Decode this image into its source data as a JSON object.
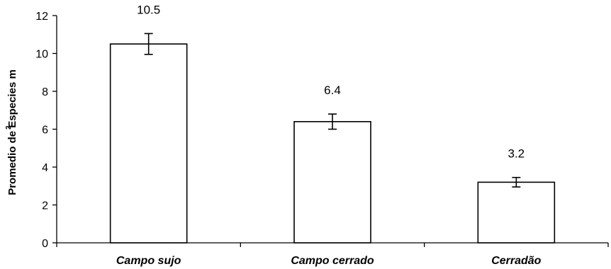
{
  "chart_data": {
    "type": "bar",
    "categories": [
      "Campo sujo",
      "Campo cerrado",
      "Cerradão"
    ],
    "values": [
      10.5,
      6.4,
      3.2
    ],
    "errors": [
      0.55,
      0.4,
      0.25
    ],
    "data_labels": [
      "10.5",
      "6.4",
      "3.2"
    ],
    "title": "",
    "xlabel": "",
    "ylabel": "Promedio de Especies m",
    "ylabel_superscript": "2",
    "ylim": [
      0,
      12
    ],
    "yticks": [
      0,
      2,
      4,
      6,
      8,
      10,
      12
    ],
    "grid": false,
    "legend": "none",
    "colors": {
      "bar_fill": "#ffffff",
      "bar_stroke": "#000000",
      "axis": "#000000",
      "error_bar": "#000000"
    }
  }
}
